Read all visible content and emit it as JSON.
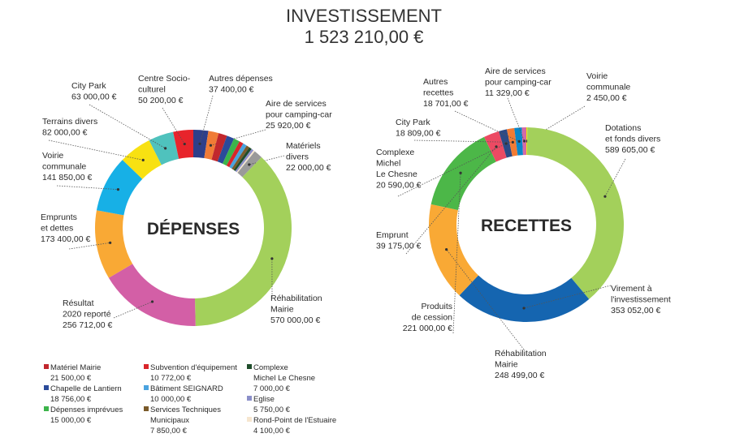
{
  "header": {
    "title": "INVESTISSEMENT",
    "subtitle": "1 523 210,00 €"
  },
  "chart_data": [
    {
      "type": "donut",
      "title": "DÉPENSES",
      "categories": [
        "Autres dépenses",
        "Aire de services\npour camping-car",
        "Matériel Mairie",
        "Chapelle de Lantiern",
        "Dépenses imprévues",
        "Subvention d'équipement",
        "Bâtiment SEIGNARD",
        "Services Techniques\nMunicipaux",
        "Complexe\nMichel Le Chesne",
        "Eglise",
        "Rond-Point de l'Estuaire",
        "Matériels\ndivers",
        "Réhabilitation\nMairie",
        "Résultat\n2020 reporté",
        "Emprunts\net dettes",
        "Voirie\ncommunale",
        "Terrains divers",
        "City Park",
        "Centre Socio-\nculturel"
      ],
      "values": [
        37400,
        25920,
        21500,
        18756,
        15000,
        10772,
        10000,
        7850,
        7000,
        5750,
        4100,
        22000,
        570000,
        256712,
        173400,
        141850,
        82000,
        63000,
        50200
      ],
      "value_labels": [
        "37 400,00 €",
        "25 920,00 €",
        "21 500,00 €",
        "18 756,00 €",
        "15 000,00 €",
        "10 772,00 €",
        "10 000,00 €",
        "7 850,00 €",
        "7 000,00 €",
        "5 750,00 €",
        "4 100,00 €",
        "22 000,00 €",
        "570 000,00 €",
        "256 712,00 €",
        "173 400,00 €",
        "141 850,00 €",
        "82 000,00 €",
        "63 000,00 €",
        "50 200,00 €"
      ],
      "colors": [
        "#2e3f8a",
        "#f07b36",
        "#c1272d",
        "#2b4a9a",
        "#3cb44b",
        "#d9252a",
        "#4aa3df",
        "#7a5a2a",
        "#1f4d2b",
        "#8b8fc9",
        "#f6e6cf",
        "#9a9a9a",
        "#a3d05b",
        "#d35fa6",
        "#f9a935",
        "#17b0e6",
        "#f8e112",
        "#4fc2bd",
        "#e8242b"
      ]
    },
    {
      "type": "donut",
      "title": "RECETTES",
      "categories": [
        "Voirie\ncommunale",
        "Dotations\net fonds divers",
        "Virement à\nl'investissement",
        "Réhabilitation\nMairie",
        "Produits\nde cession",
        "Emprunt",
        "Complexe\nMichel\nLe Chesne",
        "City Park",
        "Autres\nrecettes",
        "Aire de services\npour camping-car"
      ],
      "values": [
        2450,
        589605,
        353052,
        248499,
        221000,
        39175,
        20590,
        18809,
        18701,
        11329
      ],
      "value_labels": [
        "2 450,00 €",
        "589 605,00 €",
        "353 052,00 €",
        "248 499,00 €",
        "221 000,00 €",
        "39 175,00 €",
        "20 590,00 €",
        "18 809,00 €",
        "18 701,00 €",
        "11 329,00 €"
      ],
      "colors": [
        "#f4e30c",
        "#a3d05b",
        "#1565b0",
        "#f9a935",
        "#4cb748",
        "#ec4a63",
        "#2c4a86",
        "#f27b34",
        "#0a87c9",
        "#d46aa7"
      ]
    }
  ]
}
